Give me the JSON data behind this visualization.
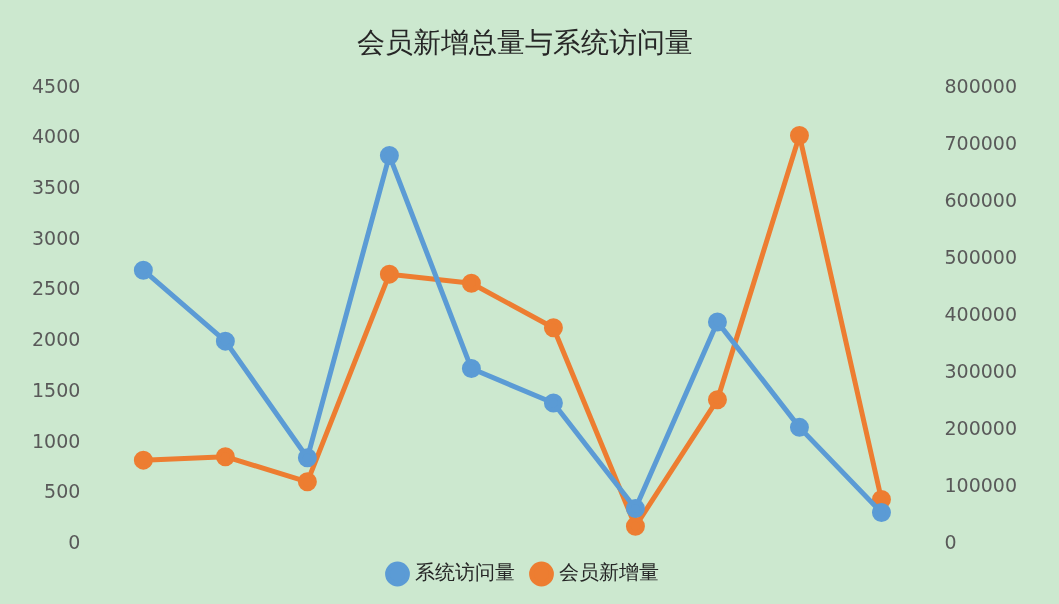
{
  "chart_data": {
    "type": "line",
    "title": "会员新增总量与系统访问量",
    "categories": [
      null,
      null,
      null,
      null,
      null,
      null,
      null,
      null,
      null,
      null
    ],
    "series": [
      {
        "name": "系统访问量",
        "color": "#5b9bd5",
        "values": [
          2700,
          2000,
          850,
          3830,
          1730,
          1390,
          350,
          2190,
          1150,
          310
        ]
      },
      {
        "name": "会员新增量",
        "color": "#ed7d31",
        "axis": "y2",
        "values": [
          147000,
          153000,
          109000,
          473000,
          457000,
          379000,
          31000,
          253000,
          716000,
          78000
        ]
      }
    ],
    "ylim": [
      0,
      4500
    ],
    "yticks": [
      0,
      500,
      1000,
      1500,
      2000,
      2500,
      3000,
      3500,
      4000,
      4500
    ],
    "y2lim": [
      0,
      800000
    ],
    "y2ticks": [
      0,
      100000,
      200000,
      300000,
      400000,
      500000,
      600000,
      700000,
      800000
    ],
    "grid": false,
    "legend": "bottom",
    "marker": "circle",
    "line_style": "solid",
    "tick_labels": "y"
  }
}
